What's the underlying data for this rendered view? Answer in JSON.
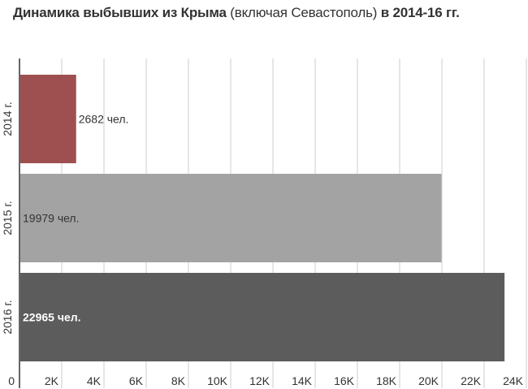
{
  "title": {
    "bold1": "Динамика выбывших из Крыма",
    "normal": " (включая Севастополь) ",
    "bold2": "в 2014-16 гг."
  },
  "chart_data": {
    "type": "bar",
    "orientation": "horizontal",
    "categories": [
      "2014 г.",
      "2015 г.",
      "2016 г."
    ],
    "values": [
      2682,
      19979,
      22965
    ],
    "data_labels": [
      "2682 чел.",
      "19979 чел.",
      "22965 чел."
    ],
    "colors": [
      "#9e5050",
      "#a3a3a3",
      "#5c5c5c"
    ],
    "xlim": [
      0,
      24000
    ],
    "xticks": [
      0,
      2000,
      4000,
      6000,
      8000,
      10000,
      12000,
      14000,
      16000,
      18000,
      20000,
      22000,
      24000
    ],
    "xtick_labels": [
      "0",
      "2K",
      "4K",
      "6K",
      "8K",
      "10K",
      "12K",
      "14K",
      "16K",
      "18K",
      "20K",
      "22K",
      "24K"
    ],
    "grid": true
  }
}
